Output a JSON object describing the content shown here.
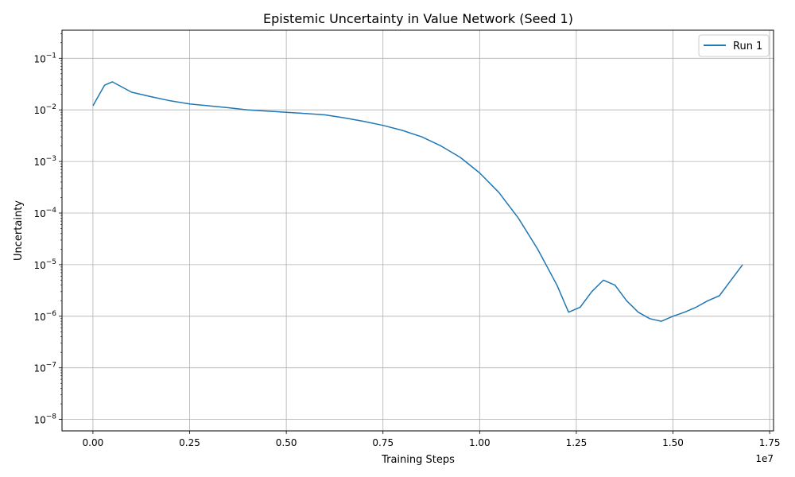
{
  "chart_data": {
    "type": "line",
    "title": "Epistemic Uncertainty in Value Network (Seed 1)",
    "xlabel": "Training Steps",
    "ylabel": "Uncertainty",
    "x_offset_label": "1e7",
    "x_scale_factor": 10000000,
    "xlim": [
      -800000,
      17600000
    ],
    "ylim": [
      6e-09,
      0.35
    ],
    "yscale": "log",
    "grid": true,
    "legend": {
      "placement": "top-right"
    },
    "x_ticks": [
      0,
      2500000,
      5000000,
      7500000,
      10000000,
      12500000,
      15000000,
      17500000
    ],
    "x_tick_labels": [
      "0.00",
      "0.25",
      "0.50",
      "0.75",
      "1.00",
      "1.25",
      "1.50",
      "1.75"
    ],
    "y_tick_exponents": [
      -8,
      -7,
      -6,
      -5,
      -4,
      -3,
      -2,
      -1
    ],
    "colors": {
      "series": "#1f77b4",
      "grid": "#b0b0b0"
    },
    "series": [
      {
        "name": "Run 1",
        "x": [
          0,
          300000,
          500000,
          1000000,
          1500000,
          2000000,
          2500000,
          3000000,
          3500000,
          4000000,
          4500000,
          5000000,
          5500000,
          6000000,
          6500000,
          7000000,
          7500000,
          8000000,
          8500000,
          9000000,
          9500000,
          10000000,
          10500000,
          11000000,
          11500000,
          12000000,
          12300000,
          12600000,
          12900000,
          13200000,
          13500000,
          13800000,
          14100000,
          14400000,
          14700000,
          15000000,
          15300000,
          15600000,
          15900000,
          16200000,
          16500000,
          16800000
        ],
        "y": [
          0.012,
          0.03,
          0.035,
          0.022,
          0.018,
          0.015,
          0.013,
          0.012,
          0.011,
          0.01,
          0.0095,
          0.009,
          0.0085,
          0.008,
          0.007,
          0.006,
          0.005,
          0.004,
          0.003,
          0.002,
          0.0012,
          0.0006,
          0.00025,
          8e-05,
          2e-05,
          4e-06,
          1.2e-06,
          1.5e-06,
          3e-06,
          5e-06,
          4e-06,
          2e-06,
          1.2e-06,
          9e-07,
          8e-07,
          1e-06,
          1.2e-06,
          1.5e-06,
          2e-06,
          2.5e-06,
          5e-06,
          1e-05
        ]
      }
    ]
  }
}
